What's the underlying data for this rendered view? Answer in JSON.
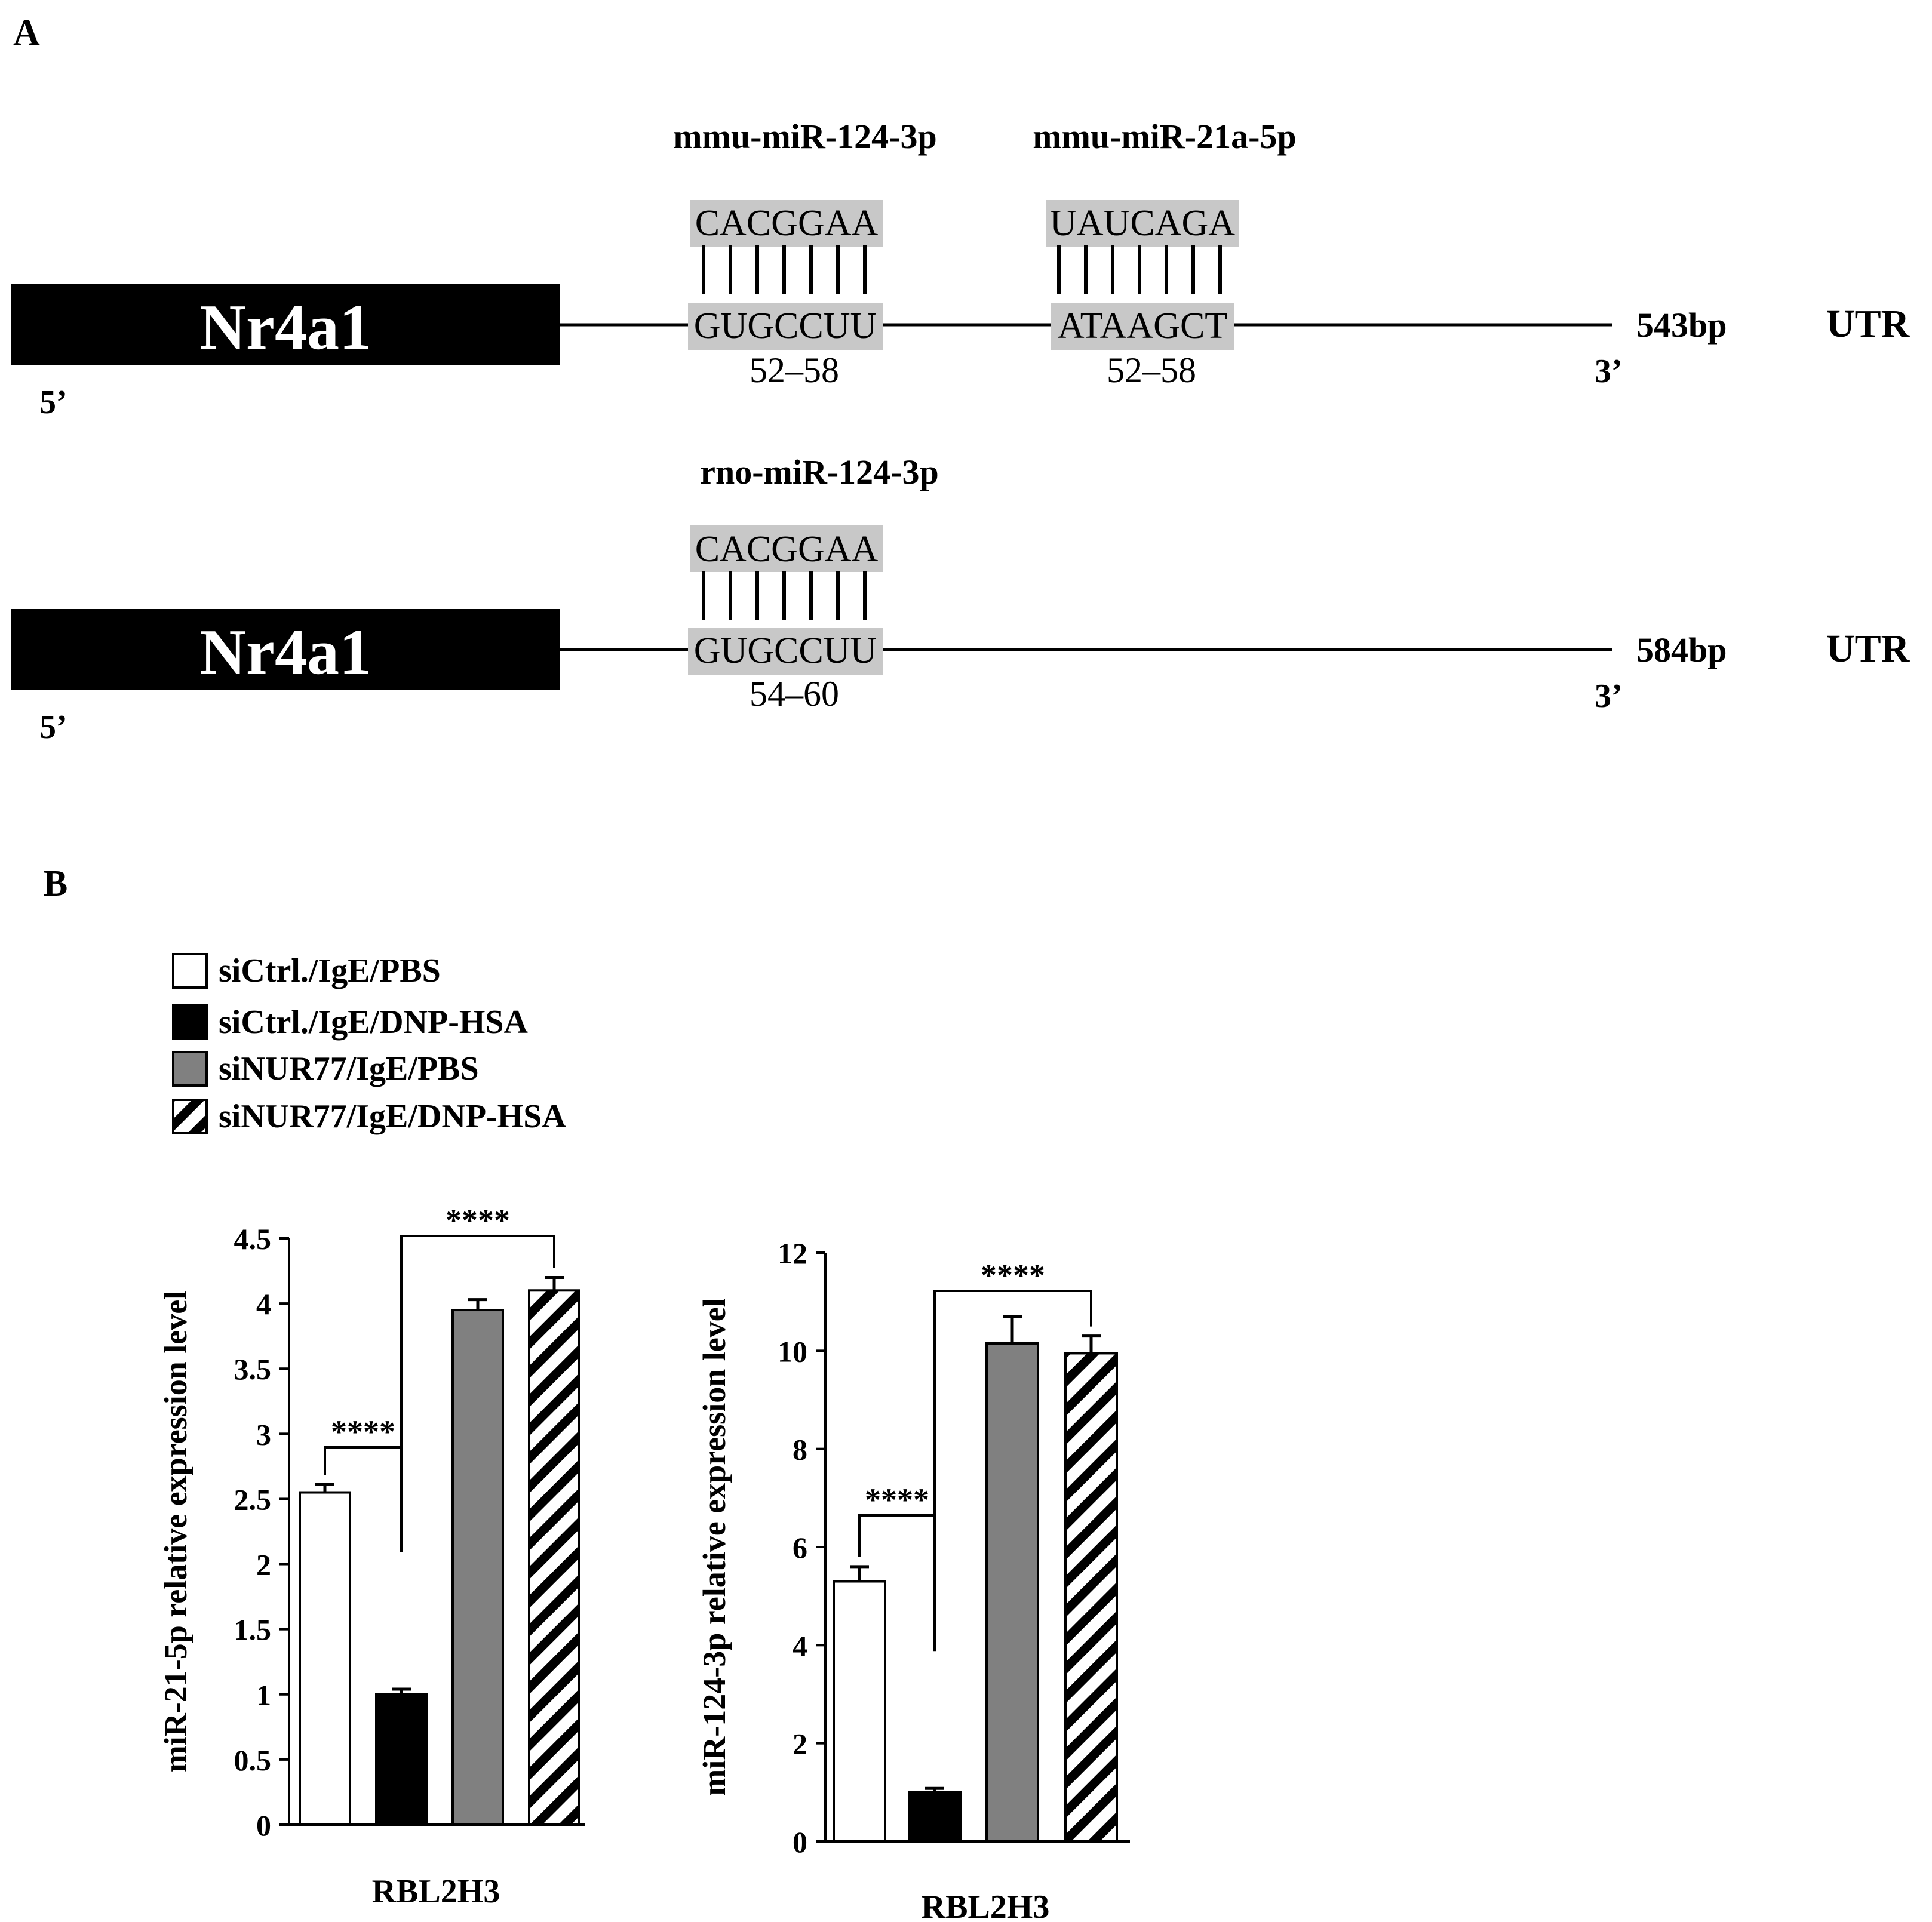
{
  "panel_a": {
    "label": "A",
    "rows": [
      {
        "gene": "Nr4a1",
        "five_prime": "5’",
        "three_prime": "3’",
        "length": "543bp",
        "region": "UTR",
        "sites": [
          {
            "mirna": "mmu-miR-124-3p",
            "mirna_seq": "CACGGAA",
            "target_seq": "GUGCCUU",
            "position": "52–58"
          },
          {
            "mirna": "mmu-miR-21a-5p",
            "mirna_seq": "UAUCAGA",
            "target_seq": "ATAAGCT",
            "position": "52–58"
          }
        ]
      },
      {
        "gene": "Nr4a1",
        "five_prime": "5’",
        "three_prime": "3’",
        "length": "584bp",
        "region": "UTR",
        "sites": [
          {
            "mirna": "rno-miR-124-3p",
            "mirna_seq": "CACGGAA",
            "target_seq": "GUGCCUU",
            "position": "54–60"
          }
        ]
      }
    ]
  },
  "panel_b": {
    "label": "B",
    "legend": [
      {
        "label": "siCtrl./IgE/PBS",
        "style": "white"
      },
      {
        "label": "siCtrl./IgE/DNP-HSA",
        "style": "black"
      },
      {
        "label": "siNUR77/IgE/PBS",
        "style": "gray"
      },
      {
        "label": "siNUR77/IgE/DNP-HSA",
        "style": "hatched"
      }
    ],
    "colors": {
      "white": "#ffffff",
      "black": "#000000",
      "gray": "#808080",
      "outline": "#000000"
    }
  },
  "chart_data": [
    {
      "type": "bar",
      "title": "",
      "xlabel": "RBL2H3",
      "ylabel": "miR-21-5p relative expression level",
      "ylim": [
        0,
        4.5
      ],
      "yticks": [
        "0",
        "0.5",
        "1",
        "1.5",
        "2",
        "2.5",
        "3",
        "3.5",
        "4",
        "4.5"
      ],
      "grid": false,
      "categories": [
        "siCtrl./IgE/PBS",
        "siCtrl./IgE/DNP-HSA",
        "siNUR77/IgE/PBS",
        "siNUR77/IgE/DNP-HSA"
      ],
      "values": [
        2.55,
        1.0,
        3.95,
        4.1
      ],
      "errors": [
        0.06,
        0.04,
        0.08,
        0.1
      ],
      "significance": [
        {
          "from": 0,
          "to": 1,
          "label": "****"
        },
        {
          "from": 1,
          "to": 3,
          "label": "****"
        }
      ]
    },
    {
      "type": "bar",
      "title": "",
      "xlabel": "RBL2H3",
      "ylabel": "miR-124-3p relative expression level",
      "ylim": [
        0,
        12
      ],
      "yticks": [
        "0",
        "2",
        "4",
        "6",
        "8",
        "10",
        "12"
      ],
      "grid": false,
      "categories": [
        "siCtrl./IgE/PBS",
        "siCtrl./IgE/DNP-HSA",
        "siNUR77/IgE/PBS",
        "siNUR77/IgE/DNP-HSA"
      ],
      "values": [
        5.3,
        1.0,
        10.15,
        9.95
      ],
      "errors": [
        0.3,
        0.08,
        0.55,
        0.35
      ],
      "significance": [
        {
          "from": 0,
          "to": 1,
          "label": "****"
        },
        {
          "from": 1,
          "to": 3,
          "label": "****"
        }
      ]
    }
  ]
}
